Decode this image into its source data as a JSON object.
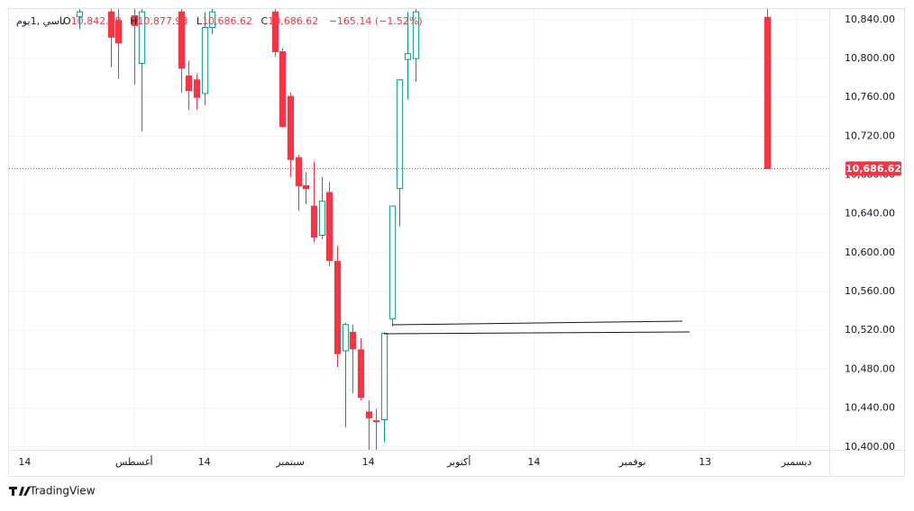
{
  "chart_data": {
    "type": "candlestick",
    "symbol": "تاسي ,1يوم",
    "legend": {
      "o_key": "O",
      "o": "10,842.48",
      "h_key": "H",
      "h": "10,877.98",
      "l_key": "L",
      "l": "10,686.62",
      "c_key": "C",
      "c": "10,686.62",
      "change": "−165.14 (−1.52%)"
    },
    "x": [
      0,
      4,
      5,
      7,
      8,
      13,
      14,
      15,
      16,
      17,
      25,
      26,
      27,
      28,
      29,
      30,
      31,
      32,
      33,
      34,
      35,
      36,
      37,
      38,
      39,
      40,
      41,
      42,
      43,
      88
    ],
    "open": [
      10843,
      10848,
      10839,
      10844,
      10795,
      10848,
      10782,
      10778,
      10764,
      10832,
      10848,
      10807,
      10761,
      10698,
      10669,
      10648,
      10618,
      10662,
      10591,
      10499,
      10518,
      10500,
      10436,
      10427,
      10428,
      10532,
      10666,
      10799,
      10800,
      10842.48
    ],
    "high": [
      10853,
      10853,
      10853,
      10853,
      10853,
      10853,
      10798,
      10784,
      10848,
      10853,
      10853,
      10811,
      10765,
      10701,
      10683,
      10694,
      10678,
      10673,
      10607,
      10528,
      10526,
      10512,
      10448,
      10439,
      10518,
      10648,
      10779,
      10848,
      10853,
      10877.98
    ],
    "low": [
      10830,
      10791,
      10779,
      10773,
      10725,
      10765,
      10747,
      10747,
      10752,
      10825,
      10802,
      10729,
      10678,
      10643,
      10650,
      10611,
      10614,
      10586,
      10482,
      10420,
      10455,
      10448,
      10395,
      10395,
      10405,
      10524,
      10627,
      10758,
      10776,
      10686.62
    ],
    "close": [
      10848,
      10822,
      10816,
      10834,
      10848,
      10790,
      10767,
      10760,
      10832,
      10848,
      10807,
      10730,
      10696,
      10669,
      10666,
      10616,
      10653,
      10592,
      10496,
      10526,
      10501,
      10451,
      10430,
      10426,
      10517,
      10648,
      10778,
      10805,
      10848,
      10686.62
    ],
    "up_color": "#089981",
    "down_color": "#f23645",
    "last_price_label": "10,686.62",
    "xlim": [
      -9,
      96
    ],
    "ylim": [
      10397,
      10851
    ],
    "xticks": [
      {
        "value": -7,
        "label": "14"
      },
      {
        "value": 7,
        "label": "أغسطس"
      },
      {
        "value": 16,
        "label": "14"
      },
      {
        "value": 27,
        "label": "سبتمبر"
      },
      {
        "value": 37,
        "label": "14"
      },
      {
        "value": 48.6,
        "label": "أكتوبر"
      },
      {
        "value": 58.2,
        "label": "14"
      },
      {
        "value": 70.8,
        "label": "نوفمبر"
      },
      {
        "value": 80.1,
        "label": "13"
      },
      {
        "value": 91.8,
        "label": "ديسمبر"
      }
    ],
    "yticks": [
      {
        "value": 10400,
        "label": "10,400.00"
      },
      {
        "value": 10440,
        "label": "10,440.00"
      },
      {
        "value": 10480,
        "label": "10,480.00"
      },
      {
        "value": 10520,
        "label": "10,520.00"
      },
      {
        "value": 10560,
        "label": "10,560.00"
      },
      {
        "value": 10600,
        "label": "10,600.00"
      },
      {
        "value": 10640,
        "label": "10,640.00"
      },
      {
        "value": 10680,
        "label": "10,680.00"
      },
      {
        "value": 10720,
        "label": "10,720.00"
      },
      {
        "value": 10760,
        "label": "10,760.00"
      },
      {
        "value": 10800,
        "label": "10,800.00"
      },
      {
        "value": 10840,
        "label": "10,840.00"
      }
    ],
    "grid": true,
    "brand": "TradingView"
  }
}
